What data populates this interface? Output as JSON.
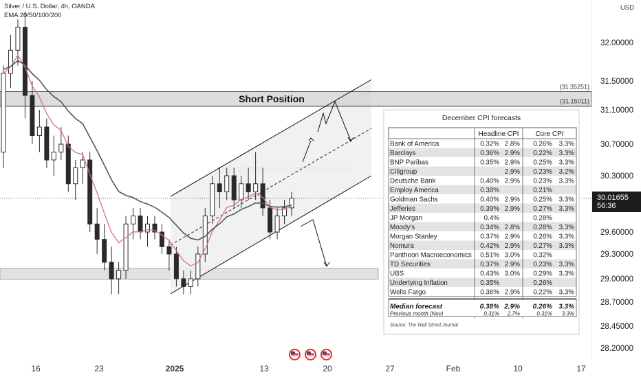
{
  "header": {
    "symbol_line": "Silver / U.S. Dollar, 4h, OANDA",
    "indicator_line": "EMA 20/50/100/200"
  },
  "axis": {
    "currency": "USD",
    "price_ticks": [
      "32.00000",
      "31.50000",
      "31.10000",
      "30.70000",
      "30.30000",
      "29.60000",
      "29.30000",
      "29.00000",
      "28.70000",
      "28.45000",
      "28.20000"
    ],
    "date_ticks": [
      "16",
      "23",
      "2025",
      "13",
      "20",
      "27",
      "Feb",
      "10",
      "17"
    ]
  },
  "current_price": {
    "value": "30.01655",
    "countdown": "56:36"
  },
  "annotations": {
    "short_position_label": "Short Position",
    "upper_level_label": "(31.35251)",
    "lower_level_label": "(31.15011)"
  },
  "colors": {
    "candle": "#2a2a2a",
    "ema_red": "#d97070",
    "ema_dark": "#555555",
    "zone_fill": "#d0d0d0",
    "price_tag_bg": "#1c1c1c"
  },
  "chart_data": {
    "type": "table",
    "table_title": "December CPI forecasts",
    "column_headers": [
      "Headline CPI",
      "Core CPI"
    ],
    "rows": [
      {
        "name": "Bank of America",
        "h_mom": "0.32%",
        "h_yoy": "2.8%",
        "c_mom": "0.26%",
        "c_yoy": "3.3%"
      },
      {
        "name": "Barclays",
        "h_mom": "0.36%",
        "h_yoy": "2.9%",
        "c_mom": "0.22%",
        "c_yoy": "3.3%"
      },
      {
        "name": "BNP Paribas",
        "h_mom": "0.35%",
        "h_yoy": "2.9%",
        "c_mom": "0.25%",
        "c_yoy": "3.3%"
      },
      {
        "name": "Citigroup",
        "h_mom": "",
        "h_yoy": "2.9%",
        "c_mom": "0.23%",
        "c_yoy": "3.2%"
      },
      {
        "name": "Deutsche Bank",
        "h_mom": "0.40%",
        "h_yoy": "2.9%",
        "c_mom": "0.23%",
        "c_yoy": "3.3%"
      },
      {
        "name": "Employ America",
        "h_mom": "0.38%",
        "h_yoy": "",
        "c_mom": "0.21%",
        "c_yoy": ""
      },
      {
        "name": "Goldman Sachs",
        "h_mom": "0.40%",
        "h_yoy": "2.9%",
        "c_mom": "0.25%",
        "c_yoy": "3.3%"
      },
      {
        "name": "Jefferies",
        "h_mom": "0.39%",
        "h_yoy": "2.9%",
        "c_mom": "0.27%",
        "c_yoy": "3.3%"
      },
      {
        "name": "JP Morgan",
        "h_mom": "0.4%",
        "h_yoy": "",
        "c_mom": "0.28%",
        "c_yoy": ""
      },
      {
        "name": "Moody's",
        "h_mom": "0.34%",
        "h_yoy": "2.8%",
        "c_mom": "0.28%",
        "c_yoy": "3.3%"
      },
      {
        "name": "Morgan Stanley",
        "h_mom": "0.37%",
        "h_yoy": "2.9%",
        "c_mom": "0.26%",
        "c_yoy": "3.3%"
      },
      {
        "name": "Nomura",
        "h_mom": "0.42%",
        "h_yoy": "2.9%",
        "c_mom": "0.27%",
        "c_yoy": "3.3%"
      },
      {
        "name": "Pantheon Macroeconomics",
        "h_mom": "0.51%",
        "h_yoy": "3.0%",
        "c_mom": "0.32%",
        "c_yoy": ""
      },
      {
        "name": "TD Securities",
        "h_mom": "0.37%",
        "h_yoy": "2.9%",
        "c_mom": "0.23%",
        "c_yoy": "3.3%"
      },
      {
        "name": "UBS",
        "h_mom": "0.43%",
        "h_yoy": "3.0%",
        "c_mom": "0.29%",
        "c_yoy": "3.3%"
      },
      {
        "name": "Underlying Inflation",
        "h_mom": "0.35%",
        "h_yoy": "",
        "c_mom": "0.26%",
        "c_yoy": ""
      },
      {
        "name": "Wells Fargo",
        "h_mom": "0.36%",
        "h_yoy": "2.9%",
        "c_mom": "0.22%",
        "c_yoy": "3.3%"
      }
    ],
    "median": {
      "name": "Median forecast",
      "h_mom": "0.38%",
      "h_yoy": "2.9%",
      "c_mom": "0.26%",
      "c_yoy": "3.3%"
    },
    "previous": {
      "name": "Previous month (Nov)",
      "h_mom": "0.31%",
      "h_yoy": "2.7%",
      "c_mom": "0.31%",
      "c_yoy": "3.3%"
    },
    "source": "Source: The Wall Street Journal",
    "price_candles": [
      [
        30.6,
        31.7,
        30.4,
        31.6
      ],
      [
        31.6,
        32.1,
        31.4,
        31.9
      ],
      [
        31.9,
        32.3,
        31.7,
        32.2
      ],
      [
        32.2,
        32.4,
        31.0,
        31.3
      ],
      [
        31.3,
        31.5,
        30.7,
        30.8
      ],
      [
        30.8,
        31.1,
        30.6,
        30.9
      ],
      [
        30.9,
        31.0,
        30.4,
        30.5
      ],
      [
        30.5,
        30.8,
        30.3,
        30.6
      ],
      [
        30.6,
        30.9,
        30.5,
        30.7
      ],
      [
        30.7,
        30.8,
        30.1,
        30.2
      ],
      [
        30.2,
        30.5,
        30.0,
        30.4
      ],
      [
        30.4,
        30.6,
        30.2,
        30.5
      ],
      [
        30.5,
        30.6,
        29.6,
        29.7
      ],
      [
        29.7,
        29.9,
        29.3,
        29.5
      ],
      [
        29.5,
        29.7,
        29.1,
        29.2
      ],
      [
        29.2,
        29.4,
        28.8,
        29.0
      ],
      [
        29.0,
        29.2,
        28.8,
        29.1
      ],
      [
        29.1,
        29.8,
        29.0,
        29.7
      ],
      [
        29.7,
        29.9,
        29.5,
        29.8
      ],
      [
        29.8,
        29.9,
        29.5,
        29.6
      ],
      [
        29.6,
        29.8,
        29.4,
        29.7
      ],
      [
        29.7,
        29.8,
        29.5,
        29.6
      ],
      [
        29.6,
        29.7,
        29.3,
        29.4
      ],
      [
        29.4,
        29.5,
        29.1,
        29.3
      ],
      [
        29.3,
        29.4,
        28.9,
        29.0
      ],
      [
        29.0,
        29.1,
        28.8,
        28.9
      ],
      [
        28.9,
        29.1,
        28.8,
        29.0
      ],
      [
        29.0,
        29.4,
        28.9,
        29.3
      ],
      [
        29.3,
        29.9,
        29.2,
        29.8
      ],
      [
        29.8,
        30.3,
        29.7,
        30.2
      ],
      [
        30.2,
        30.4,
        29.9,
        30.1
      ],
      [
        30.1,
        30.4,
        30.0,
        30.3
      ],
      [
        30.3,
        30.4,
        29.9,
        30.0
      ],
      [
        30.0,
        30.3,
        29.9,
        30.2
      ],
      [
        30.2,
        30.4,
        30.0,
        30.1
      ],
      [
        30.1,
        30.6,
        30.0,
        30.2
      ],
      [
        30.2,
        30.4,
        29.8,
        29.9
      ],
      [
        29.9,
        30.0,
        29.5,
        29.6
      ],
      [
        29.6,
        29.9,
        29.5,
        29.8
      ],
      [
        29.8,
        30.0,
        29.7,
        29.9
      ],
      [
        29.9,
        30.1,
        29.8,
        30.02
      ]
    ],
    "levels": {
      "upper": 31.35251,
      "lower": 31.15011
    }
  }
}
